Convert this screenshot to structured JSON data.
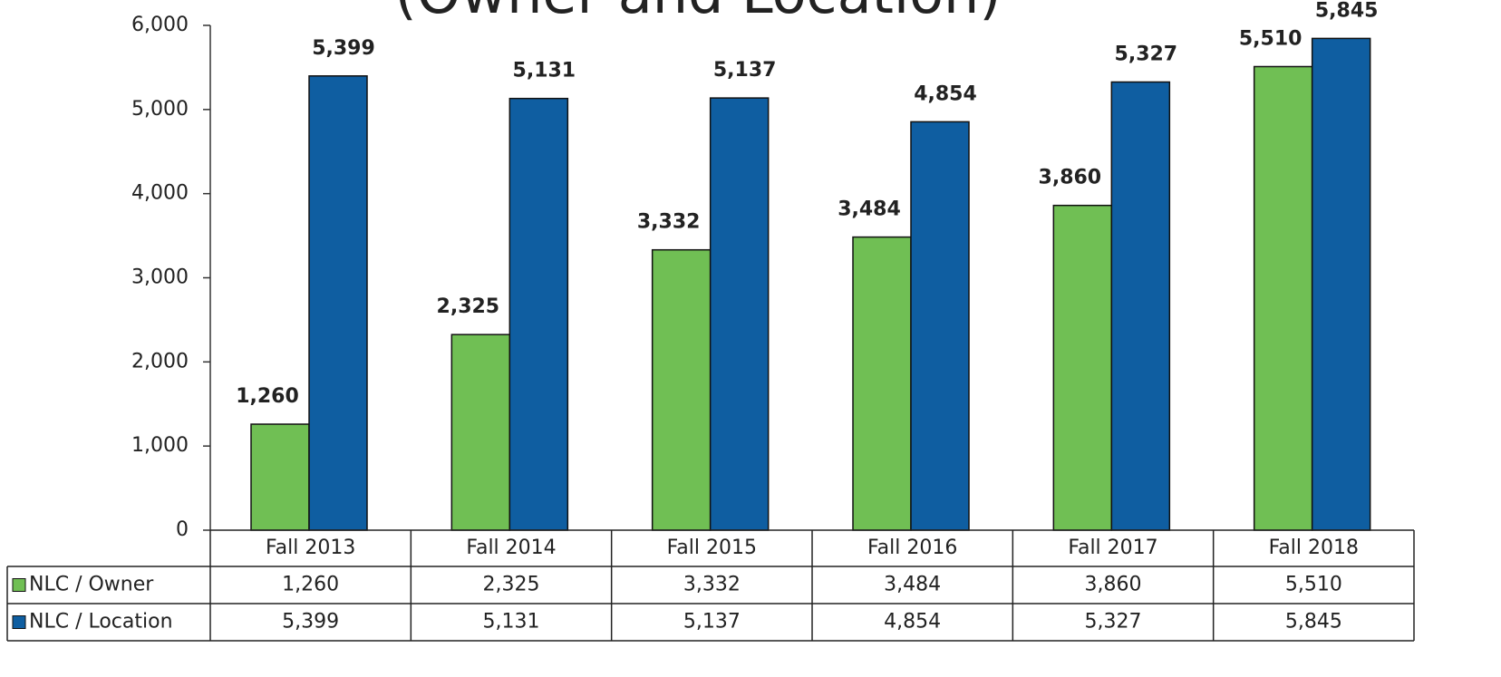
{
  "chart_data": {
    "type": "bar",
    "title": "(Owner and Location)",
    "categories": [
      "Fall 2013",
      "Fall 2014",
      "Fall 2015",
      "Fall 2016",
      "Fall 2017",
      "Fall 2018"
    ],
    "series": [
      {
        "name": "NLC / Owner",
        "color": "#70bf54",
        "values": [
          1260,
          2325,
          3332,
          3484,
          3860,
          5510
        ],
        "value_labels": [
          "1,260",
          "2,325",
          "3,332",
          "3,484",
          "3,860",
          "5,510"
        ]
      },
      {
        "name": "NLC / Location",
        "color": "#0f5ea1",
        "values": [
          5399,
          5131,
          5137,
          4854,
          5327,
          5845
        ],
        "value_labels": [
          "5,399",
          "5,131",
          "5,137",
          "4,854",
          "5,327",
          "5,845"
        ]
      }
    ],
    "ylim": [
      0,
      6000
    ],
    "yticks": [
      0,
      {
        "value": 1000,
        "label": "1,000"
      },
      {
        "value": 2000,
        "label": "2,000"
      },
      {
        "value": 3000,
        "label": "3,000"
      },
      {
        "value": 4000,
        "label": "4,000"
      },
      {
        "value": 5000,
        "label": "5,000"
      },
      {
        "value": 6000,
        "label": "6,000"
      }
    ],
    "data_table": true
  }
}
